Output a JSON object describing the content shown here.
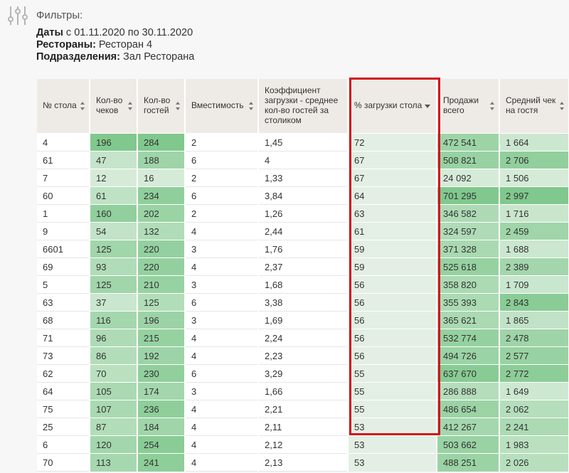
{
  "filters": {
    "title": "Фильтры:",
    "dates_label": "Даты",
    "dates_value": " с 01.11.2020 по 30.11.2020",
    "restaurants_label": "Рестораны:",
    "restaurants_value": " Ресторан 4",
    "divisions_label": "Подразделения:",
    "divisions_value": " Зал Ресторана"
  },
  "table": {
    "columns": [
      "№ стола",
      "Кол-во чеков",
      "Кол-во гостей",
      "Вместимость",
      "Коэффициент загрузки - среднее кол-во гостей за столиком",
      "% загрузки стола",
      "Продажи всего",
      "Средний чек на гостя"
    ],
    "sorted_column": "% загрузки стола",
    "rows": [
      [
        "4",
        "196",
        "284",
        "2",
        "1,45",
        "72",
        "472 541",
        "1 664"
      ],
      [
        "61",
        "47",
        "188",
        "6",
        "4",
        "67",
        "508 821",
        "2 706"
      ],
      [
        "7",
        "12",
        "16",
        "2",
        "1,33",
        "67",
        "24 092",
        "1 506"
      ],
      [
        "60",
        "61",
        "234",
        "6",
        "3,84",
        "64",
        "701 295",
        "2 997"
      ],
      [
        "1",
        "160",
        "202",
        "2",
        "1,26",
        "63",
        "346 582",
        "1 716"
      ],
      [
        "9",
        "54",
        "132",
        "4",
        "2,44",
        "61",
        "324 597",
        "2 459"
      ],
      [
        "6601",
        "125",
        "220",
        "3",
        "1,76",
        "59",
        "371 328",
        "1 688"
      ],
      [
        "69",
        "93",
        "220",
        "4",
        "2,37",
        "59",
        "525 618",
        "2 389"
      ],
      [
        "5",
        "125",
        "210",
        "3",
        "1,68",
        "56",
        "358 820",
        "1 709"
      ],
      [
        "63",
        "37",
        "125",
        "6",
        "3,38",
        "56",
        "355 393",
        "2 843"
      ],
      [
        "68",
        "116",
        "196",
        "3",
        "1,69",
        "56",
        "365 621",
        "1 865"
      ],
      [
        "71",
        "96",
        "215",
        "4",
        "2,24",
        "56",
        "532 774",
        "2 478"
      ],
      [
        "73",
        "86",
        "192",
        "4",
        "2,23",
        "56",
        "494 726",
        "2 577"
      ],
      [
        "62",
        "70",
        "230",
        "6",
        "3,29",
        "55",
        "637 670",
        "2 772"
      ],
      [
        "64",
        "105",
        "174",
        "3",
        "1,66",
        "55",
        "286 888",
        "1 649"
      ],
      [
        "75",
        "107",
        "236",
        "4",
        "2,21",
        "55",
        "486 654",
        "2 062"
      ],
      [
        "25",
        "87",
        "184",
        "4",
        "2,11",
        "53",
        "412 267",
        "2 241"
      ],
      [
        "6",
        "120",
        "254",
        "4",
        "2,12",
        "53",
        "503 662",
        "1 983"
      ],
      [
        "70",
        "113",
        "241",
        "4",
        "2,13",
        "53",
        "488 251",
        "2 026"
      ]
    ]
  },
  "colors": {
    "heat_low": "#e4f1e5",
    "heat_high": "#80c88d",
    "highlight_border": "#d4111b",
    "header_bg": "#eeebe6"
  },
  "icons": {
    "filter": "sliders-icon",
    "sort": "sort-arrows-icon",
    "sort_desc": "sort-desc-icon"
  }
}
